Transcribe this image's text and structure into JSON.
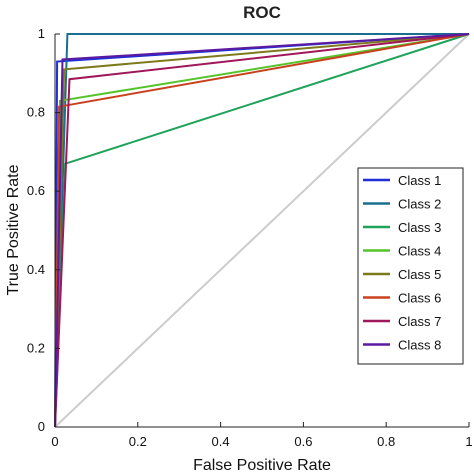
{
  "chart_data": {
    "type": "line",
    "title": "ROC",
    "xlabel": "False Positive Rate",
    "ylabel": "True Positive Rate",
    "xlim": [
      0,
      1
    ],
    "ylim": [
      0,
      1
    ],
    "xticks": [
      0,
      0.2,
      0.4,
      0.6,
      0.8,
      1
    ],
    "yticks": [
      0,
      0.2,
      0.4,
      0.6,
      0.8,
      1
    ],
    "xtick_labels": [
      "0",
      "0.2",
      "0.4",
      "0.6",
      "0.8",
      "1"
    ],
    "ytick_labels": [
      "0",
      "0.2",
      "0.4",
      "0.6",
      "0.8",
      "1"
    ],
    "grid": false,
    "legend_position": "right",
    "reference_line": {
      "x": [
        0,
        1
      ],
      "y": [
        0,
        1
      ],
      "color": "#cccccc"
    },
    "series": [
      {
        "name": "Class 1",
        "color": "#1f2fd6",
        "x": [
          0,
          0.005,
          1
        ],
        "y": [
          0,
          0.93,
          1
        ]
      },
      {
        "name": "Class 2",
        "color": "#1a6f8f",
        "x": [
          0,
          0.03,
          1
        ],
        "y": [
          0,
          1.0,
          1
        ]
      },
      {
        "name": "Class 3",
        "color": "#1fa25a",
        "x": [
          0,
          0.025,
          1
        ],
        "y": [
          0,
          0.67,
          1
        ]
      },
      {
        "name": "Class 4",
        "color": "#55c42a",
        "x": [
          0,
          0.012,
          1
        ],
        "y": [
          0,
          0.83,
          1
        ]
      },
      {
        "name": "Class 5",
        "color": "#7d7a1c",
        "x": [
          0,
          0.022,
          1
        ],
        "y": [
          0,
          0.91,
          1
        ]
      },
      {
        "name": "Class 6",
        "color": "#c9421f",
        "x": [
          0,
          0.01,
          1
        ],
        "y": [
          0,
          0.815,
          1
        ]
      },
      {
        "name": "Class 7",
        "color": "#a0175a",
        "x": [
          0,
          0.035,
          1
        ],
        "y": [
          0,
          0.885,
          1
        ]
      },
      {
        "name": "Class 8",
        "color": "#5b1aa0",
        "x": [
          0,
          0.018,
          1
        ],
        "y": [
          0,
          0.935,
          1
        ]
      }
    ]
  }
}
